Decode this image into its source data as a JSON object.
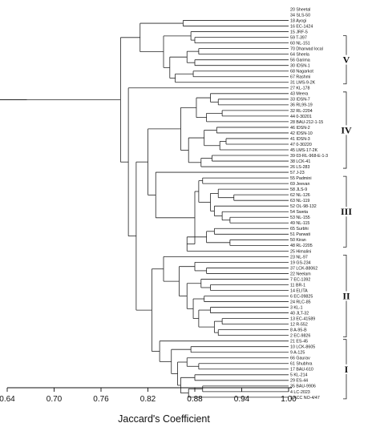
{
  "dendrogram": {
    "leaves": [
      "20 Sheetal",
      "34 SLS-50",
      "18 Ayogi",
      "16 EC-1424",
      "15 JRF-5",
      "59 T-397",
      "60 NL-151",
      "70 Dharwad local",
      "64 Sheela",
      "56 Garima",
      "30 IDSN-1",
      "68 Nagarkot",
      "67 Rashmi",
      "31 LMS-9-2K",
      "27 KL-178",
      "43 Meera",
      "33 IDSN-7",
      "36 RL99-19",
      "32 RL-2204",
      "44 0-30201",
      "28 BAU-212-1-15",
      "46 IDSN-2",
      "42 IDSN-10",
      "41 IDSN-3",
      "47 0-30220",
      "45 LMS-17-2K",
      "39 03-RL-968-E-1-3",
      "38 LCK-41",
      "26 LS-283",
      "57 J-23",
      "55 Padmini",
      "69 Jeevan",
      "58 JLS-9",
      "62 NL-126",
      "63 NL-119",
      "52 OL-98-132",
      "54 Sweta",
      "53 NL-155",
      "49 NL-115",
      "65 Surbhi",
      "51 Parwati",
      "50 Kiran",
      "48 RL-2205",
      "25 Himalini",
      "23 NL-97",
      "19 GS-234",
      "37 LCK-88062",
      "22 Neelam",
      "7 EC-1392",
      "11 BR-1",
      "14 ELITA",
      "6 EC-09825",
      "24 RLC-85",
      "3 KL-1",
      "40 JLT-32",
      "13 EC-41589",
      "12 R-552",
      "8 A-95-B",
      "2 EC-9826",
      "21 ES-45",
      "10 LCK-8605",
      "9 A-125",
      "66 Gaurav",
      "61 Shubhra",
      "17 BAU-610",
      "5 KL-214",
      "29 ES-44",
      "35 BAU-9906",
      "4 LC-2023",
      "1 ACC NO-4/47"
    ],
    "tree": [
      0.645,
      [
        "20 Sheetal",
        [
          0.665,
          [
            "34 SLS-50",
            [
              0.785,
              [
                0.81,
                [
                  0.865,
                  "18 Ayogi",
                  "16 EC-1424"
                ],
                [
                  0.84,
                  [
                    0.875,
                    "15 JRF-5",
                    [
                      0.88,
                      "59 T-397",
                      "60 NL-151"
                    ]
                  ],
                  [
                    0.848,
                    [
                      0.87,
                      [
                        0.885,
                        "70 Dharwad local",
                        "64 Sheela"
                      ],
                      [
                        0.88,
                        "56 Garima",
                        "30 IDSN-1"
                      ]
                    ],
                    [
                      0.855,
                      [
                        0.878,
                        "68 Nagarkot",
                        "67 Rashmi"
                      ],
                      "31 LMS-9-2K"
                    ]
                  ]
                ]
              ],
              [
                0.795,
                "27 KL-178",
                [
                  0.805,
                  [
                    0.82,
                    [
                      0.862,
                      [
                        0.882,
                        [
                          0.9,
                          "43 Meera",
                          [
                            0.91,
                            "33 IDSN-7",
                            "36 RL99-19"
                          ]
                        ],
                        [
                          0.895,
                          [
                            0.915,
                            "32 RL-2204",
                            "44 0-30201"
                          ],
                          "28 BAU-212-1-15"
                        ]
                      ],
                      [
                        0.872,
                        [
                          0.892,
                          [
                            0.908,
                            "46 IDSN-2",
                            "42 IDSN-10"
                          ],
                          [
                            0.912,
                            [
                              0.92,
                              "41 IDSN-3",
                              "47 0-30220"
                            ],
                            "45 LMS-17-2K"
                          ]
                        ],
                        [
                          0.888,
                          [
                            0.902,
                            "39 03-RL-968-E-1-3",
                            "38 LCK-41"
                          ],
                          "26 LS-283"
                        ]
                      ]
                    ],
                    [
                      0.83,
                      "57 J-23",
                      [
                        0.88,
                        [
                          0.885,
                          [
                            0.89,
                            "55 Padmini",
                            "69 Jeevan"
                          ],
                          [
                            0.9,
                            [
                              0.91,
                              "58 JLS-9",
                              [
                                0.93,
                                "62 NL-126",
                                "63 NL-119"
                              ]
                            ],
                            [
                              0.905,
                              "52 OL-98-132",
                              [
                                0.915,
                                "54 Sweta",
                                [
                                  0.925,
                                  "53 NL-155",
                                  "49 NL-115"
                                ]
                              ]
                            ]
                          ]
                        ],
                        [
                          0.87,
                          [
                            0.895,
                            [
                              0.905,
                              "65 Surbhi",
                              "51 Parwati"
                            ],
                            [
                              0.925,
                              "50 Kiran",
                              "48 RL-2205"
                            ]
                          ],
                          "25 Himalini"
                        ]
                      ]
                    ]
                  ],
                  [
                    0.825,
                    [
                      0.84,
                      "23 NL-97",
                      [
                        0.86,
                        [
                          0.88,
                          "19 GS-234",
                          [
                            0.895,
                            "37 LCK-88062",
                            "22 Neelam"
                          ]
                        ],
                        [
                          0.87,
                          [
                            0.888,
                            "7 EC-1392",
                            [
                              0.9,
                              "11 BR-1",
                              "14 ELITA"
                            ]
                          ],
                          [
                            0.878,
                            [
                              0.892,
                              "6 EC-09825",
                              "24 RLC-85"
                            ],
                            [
                              0.885,
                              [
                                0.9,
                                "3 KL-1",
                                "40 JLT-32"
                              ],
                              [
                                0.905,
                                [
                                  0.915,
                                  "13 EC-41589",
                                  "12 R-552"
                                ],
                                [
                                  0.91,
                                  "8 A-95-B",
                                  "2 EC-9826"
                                ]
                              ]
                            ]
                          ]
                        ]
                      ]
                    ],
                    [
                      0.835,
                      "21 ES-45",
                      [
                        0.85,
                        [
                          0.875,
                          "10 LCK-8605",
                          "9 A-125"
                        ],
                        [
                          0.858,
                          [
                            0.87,
                            "66 Gaurav",
                            [
                              0.885,
                              "61 Shubhra",
                              "17 BAU-610"
                            ]
                          ],
                          [
                            0.862,
                            [
                              0.88,
                              "5 KL-214",
                              "29 ES-44"
                            ],
                            [
                              0.872,
                              [
                                0.89,
                                "35 BAU-9906",
                                "4 LC-2023"
                              ],
                              "1 ACC NO-4/47"
                            ]
                          ]
                        ]
                      ]
                    ]
                  ]
                ]
              ]
            ]
          ]
        ]
      ]
    ],
    "groups": [
      {
        "label": "V",
        "first": "59 T-397",
        "last": "31 LMS-9-2K"
      },
      {
        "label": "IV",
        "first": "43 Meera",
        "last": "26 LS-283"
      },
      {
        "label": "III",
        "first": "55 Padmini",
        "last": "48 RL-2205"
      },
      {
        "label": "II",
        "first": "23 NL-97",
        "last": "2 EC-9826"
      },
      {
        "label": "I",
        "first": "21 ES-45",
        "last": "1 ACC NO-4/47"
      }
    ]
  },
  "axis": {
    "ticks": [
      "0.64",
      "0.70",
      "0.76",
      "0.82",
      "0.88",
      "0.94",
      "1.00"
    ],
    "min": 0.64,
    "max": 1.0,
    "label": "Jaccard's Coefficient"
  }
}
